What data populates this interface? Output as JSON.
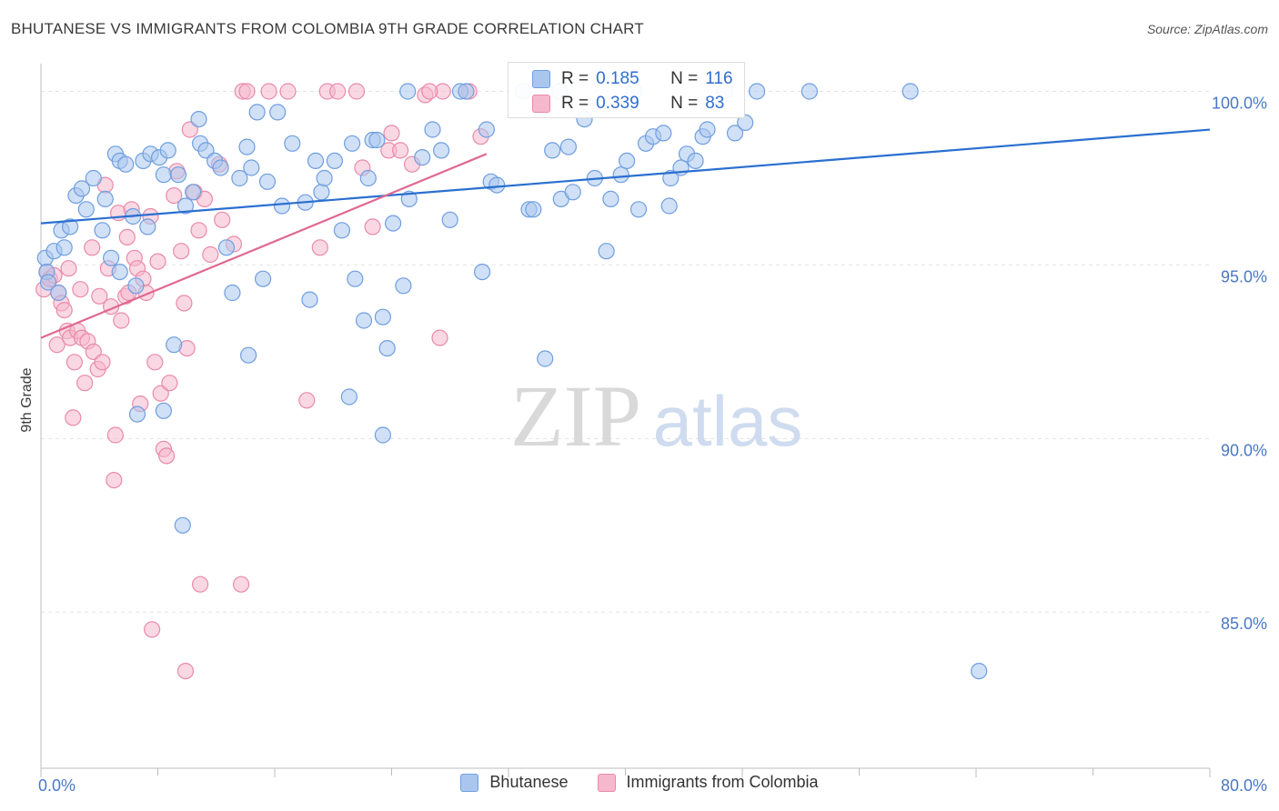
{
  "title": "BHUTANESE VS IMMIGRANTS FROM COLOMBIA 9TH GRADE CORRELATION CHART",
  "source": "Source: ZipAtlas.com",
  "watermark": {
    "zip": "ZIP",
    "atlas": "atlas"
  },
  "colors": {
    "blue_fill": "#a9c6ef",
    "blue_stroke": "#6f9ee0",
    "blue_line": "#2a6fd0",
    "pink_fill": "#f5b8cc",
    "pink_stroke": "#e98aa9",
    "pink_line": "#e06892",
    "tick_text": "#4a78c4",
    "grid": "#e3e3e3"
  },
  "legend": {
    "rows": [
      {
        "r_label": "R =",
        "r_value": "0.185",
        "n_label": "N =",
        "n_value": "116"
      },
      {
        "r_label": "R =",
        "r_value": "0.339",
        "n_label": "N =",
        "n_value": "83"
      }
    ]
  },
  "bottom_legend": [
    "Bhutanese",
    "Immigrants from Colombia"
  ],
  "chart_data": {
    "type": "scatter",
    "title": "BHUTANESE VS IMMIGRANTS FROM COLOMBIA 9TH GRADE CORRELATION CHART",
    "xlabel": "",
    "ylabel": "9th Grade",
    "xlim": [
      0,
      80
    ],
    "ylim": [
      80.5,
      100.8
    ],
    "x_tick_labels": [
      "0.0%",
      "80.0%"
    ],
    "y_ticks": [
      85,
      90,
      95,
      100
    ],
    "y_tick_labels": [
      "85.0%",
      "90.0%",
      "95.0%",
      "100.0%"
    ],
    "series": [
      {
        "name": "Bhutanese",
        "r": 0.185,
        "n": 116,
        "trend": {
          "x": [
            0,
            80
          ],
          "y": [
            96.2,
            98.9
          ]
        },
        "points": [
          [
            0.3,
            95.2
          ],
          [
            0.4,
            94.8
          ],
          [
            0.5,
            94.5
          ],
          [
            0.9,
            95.4
          ],
          [
            1.2,
            94.2
          ],
          [
            1.4,
            96.0
          ],
          [
            1.6,
            95.5
          ],
          [
            2.0,
            96.1
          ],
          [
            2.4,
            97.0
          ],
          [
            2.8,
            97.2
          ],
          [
            3.1,
            96.6
          ],
          [
            3.6,
            97.5
          ],
          [
            4.2,
            96.0
          ],
          [
            4.4,
            96.9
          ],
          [
            4.8,
            95.2
          ],
          [
            5.1,
            98.2
          ],
          [
            5.4,
            98.0
          ],
          [
            5.8,
            97.9
          ],
          [
            6.3,
            96.4
          ],
          [
            7.0,
            98.0
          ],
          [
            7.3,
            96.1
          ],
          [
            7.5,
            98.2
          ],
          [
            8.1,
            98.1
          ],
          [
            8.4,
            97.6
          ],
          [
            8.7,
            98.3
          ],
          [
            9.4,
            97.6
          ],
          [
            9.9,
            96.7
          ],
          [
            10.4,
            97.1
          ],
          [
            10.8,
            99.2
          ],
          [
            10.9,
            98.5
          ],
          [
            11.3,
            98.3
          ],
          [
            11.9,
            98.0
          ],
          [
            12.3,
            97.8
          ],
          [
            12.7,
            95.5
          ],
          [
            13.1,
            94.2
          ],
          [
            13.6,
            97.5
          ],
          [
            14.1,
            98.4
          ],
          [
            14.4,
            97.8
          ],
          [
            14.8,
            99.4
          ],
          [
            15.2,
            94.6
          ],
          [
            15.5,
            97.4
          ],
          [
            16.2,
            99.4
          ],
          [
            16.5,
            96.7
          ],
          [
            17.2,
            98.5
          ],
          [
            18.1,
            96.8
          ],
          [
            18.8,
            98.0
          ],
          [
            19.2,
            97.1
          ],
          [
            19.4,
            97.5
          ],
          [
            20.1,
            98.0
          ],
          [
            20.6,
            96.0
          ],
          [
            21.3,
            98.5
          ],
          [
            21.5,
            94.6
          ],
          [
            22.1,
            93.4
          ],
          [
            22.4,
            97.5
          ],
          [
            22.7,
            98.6
          ],
          [
            23.0,
            98.6
          ],
          [
            23.4,
            93.5
          ],
          [
            24.1,
            96.2
          ],
          [
            24.8,
            94.4
          ],
          [
            25.2,
            96.9
          ],
          [
            26.1,
            98.1
          ],
          [
            26.8,
            98.9
          ],
          [
            27.4,
            98.3
          ],
          [
            28.0,
            96.3
          ],
          [
            28.7,
            100.0
          ],
          [
            29.1,
            100.0
          ],
          [
            30.2,
            94.8
          ],
          [
            30.5,
            98.9
          ],
          [
            30.8,
            97.4
          ],
          [
            31.2,
            97.3
          ],
          [
            33.0,
            100.0
          ],
          [
            33.4,
            96.6
          ],
          [
            33.7,
            96.6
          ],
          [
            34.5,
            92.3
          ],
          [
            35.0,
            98.3
          ],
          [
            35.5,
            100.0
          ],
          [
            35.6,
            96.9
          ],
          [
            36.1,
            98.4
          ],
          [
            36.4,
            97.1
          ],
          [
            37.2,
            99.2
          ],
          [
            37.9,
            97.5
          ],
          [
            38.7,
            95.4
          ],
          [
            39.0,
            96.9
          ],
          [
            39.7,
            97.6
          ],
          [
            40.1,
            98.0
          ],
          [
            40.6,
            100.0
          ],
          [
            40.9,
            96.6
          ],
          [
            41.4,
            98.5
          ],
          [
            41.9,
            98.7
          ],
          [
            42.6,
            98.8
          ],
          [
            43.0,
            96.7
          ],
          [
            43.1,
            97.5
          ],
          [
            43.8,
            97.8
          ],
          [
            44.2,
            98.2
          ],
          [
            44.8,
            98.0
          ],
          [
            45.3,
            98.7
          ],
          [
            45.6,
            98.9
          ],
          [
            46.8,
            100.0
          ],
          [
            47.5,
            98.8
          ],
          [
            48.2,
            99.1
          ],
          [
            49.0,
            100.0
          ],
          [
            52.6,
            100.0
          ],
          [
            59.5,
            100.0
          ],
          [
            64.2,
            83.3
          ],
          [
            6.5,
            94.4
          ],
          [
            5.4,
            94.8
          ],
          [
            8.4,
            90.8
          ],
          [
            9.1,
            92.7
          ],
          [
            6.6,
            90.7
          ],
          [
            9.7,
            87.5
          ],
          [
            14.2,
            92.4
          ],
          [
            18.4,
            94.0
          ],
          [
            23.7,
            92.6
          ],
          [
            21.1,
            91.2
          ],
          [
            23.4,
            90.1
          ],
          [
            25.1,
            100.0
          ]
        ]
      },
      {
        "name": "Immigrants from Colombia",
        "r": 0.339,
        "n": 83,
        "trend": {
          "x": [
            0,
            30.5
          ],
          "y": [
            92.9,
            98.2
          ]
        },
        "points": [
          [
            0.2,
            94.3
          ],
          [
            0.4,
            94.8
          ],
          [
            0.6,
            94.6
          ],
          [
            0.9,
            94.7
          ],
          [
            1.1,
            92.7
          ],
          [
            1.2,
            94.2
          ],
          [
            1.4,
            93.9
          ],
          [
            1.6,
            93.7
          ],
          [
            1.8,
            93.1
          ],
          [
            1.9,
            94.9
          ],
          [
            2.0,
            92.9
          ],
          [
            2.2,
            90.6
          ],
          [
            2.3,
            92.2
          ],
          [
            2.5,
            93.1
          ],
          [
            2.7,
            94.3
          ],
          [
            2.8,
            92.9
          ],
          [
            3.0,
            91.6
          ],
          [
            3.2,
            92.8
          ],
          [
            3.5,
            95.5
          ],
          [
            3.6,
            92.5
          ],
          [
            3.9,
            92.0
          ],
          [
            4.0,
            94.1
          ],
          [
            4.2,
            92.2
          ],
          [
            4.4,
            97.3
          ],
          [
            4.6,
            94.9
          ],
          [
            4.8,
            93.8
          ],
          [
            5.0,
            88.8
          ],
          [
            5.1,
            90.1
          ],
          [
            5.3,
            96.5
          ],
          [
            5.5,
            93.4
          ],
          [
            5.8,
            94.1
          ],
          [
            5.9,
            95.8
          ],
          [
            6.0,
            94.2
          ],
          [
            6.2,
            96.6
          ],
          [
            6.4,
            95.2
          ],
          [
            6.6,
            94.9
          ],
          [
            6.8,
            91.0
          ],
          [
            7.0,
            94.6
          ],
          [
            7.2,
            94.2
          ],
          [
            7.5,
            96.4
          ],
          [
            7.8,
            92.2
          ],
          [
            8.0,
            95.1
          ],
          [
            8.2,
            91.3
          ],
          [
            8.4,
            89.7
          ],
          [
            8.6,
            89.5
          ],
          [
            8.8,
            91.6
          ],
          [
            9.1,
            97.0
          ],
          [
            9.3,
            97.7
          ],
          [
            9.6,
            95.4
          ],
          [
            9.8,
            93.9
          ],
          [
            10.0,
            92.6
          ],
          [
            10.2,
            98.9
          ],
          [
            10.5,
            97.1
          ],
          [
            10.8,
            96.0
          ],
          [
            10.9,
            85.8
          ],
          [
            11.2,
            96.9
          ],
          [
            11.6,
            95.3
          ],
          [
            12.2,
            97.9
          ],
          [
            12.4,
            96.3
          ],
          [
            13.2,
            95.6
          ],
          [
            13.8,
            100.0
          ],
          [
            14.1,
            100.0
          ],
          [
            15.6,
            100.0
          ],
          [
            16.9,
            100.0
          ],
          [
            18.2,
            91.1
          ],
          [
            19.6,
            100.0
          ],
          [
            20.3,
            100.0
          ],
          [
            21.6,
            100.0
          ],
          [
            22.7,
            96.1
          ],
          [
            23.8,
            98.3
          ],
          [
            24.6,
            98.3
          ],
          [
            26.3,
            99.9
          ],
          [
            27.5,
            100.0
          ],
          [
            29.3,
            100.0
          ],
          [
            30.1,
            98.7
          ],
          [
            26.6,
            100.0
          ],
          [
            25.4,
            97.9
          ],
          [
            7.6,
            84.5
          ],
          [
            9.9,
            83.3
          ],
          [
            13.7,
            85.8
          ],
          [
            24.0,
            98.8
          ],
          [
            19.1,
            95.5
          ],
          [
            22.0,
            97.8
          ],
          [
            27.3,
            92.9
          ]
        ]
      }
    ]
  }
}
